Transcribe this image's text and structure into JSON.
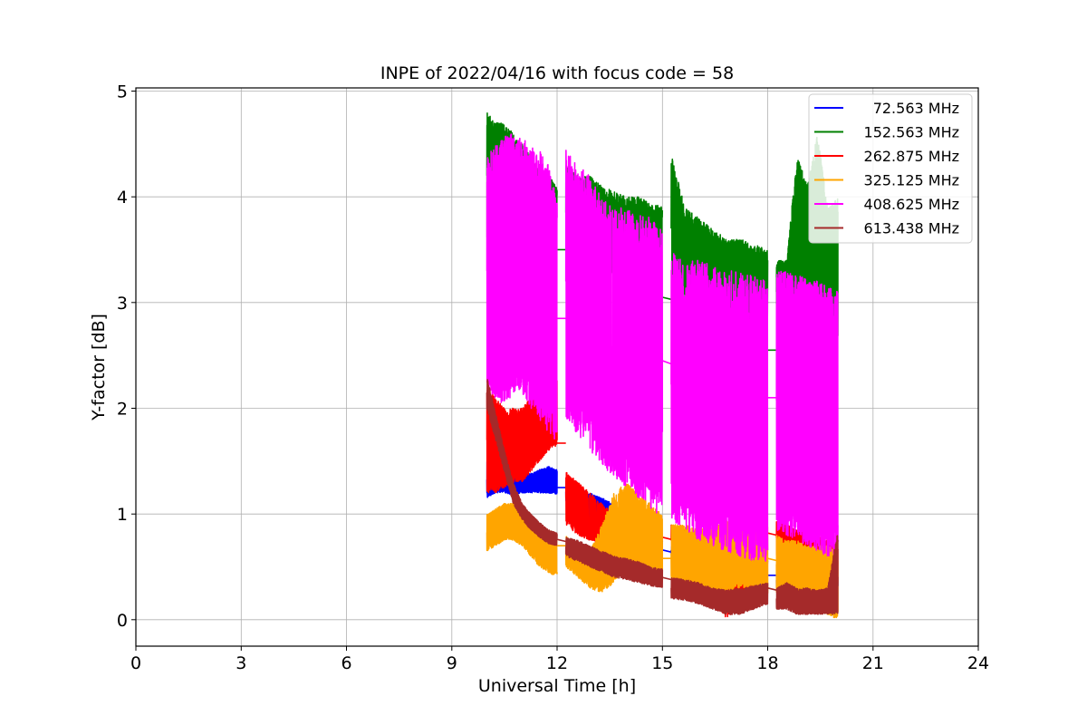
{
  "chart_data": {
    "type": "line",
    "title": "INPE of 2022/04/16 with focus code = 58",
    "xlabel": "Universal Time [h]",
    "ylabel": "Y-factor [dB]",
    "xlim": [
      0,
      24
    ],
    "ylim": [
      -0.25,
      5.03
    ],
    "xticks": [
      0,
      3,
      6,
      9,
      12,
      15,
      18,
      21,
      24
    ],
    "yticks": [
      0,
      1,
      2,
      3,
      4,
      5
    ],
    "grid": true,
    "legend_position": "top-right",
    "series": [
      {
        "name": "72.563 MHz",
        "color": "#0000ff",
        "segments": [
          {
            "start": 10.0,
            "end": 12.0,
            "low": [
              1.15,
              1.2,
              1.2,
              1.18,
              1.2,
              1.2,
              1.2,
              1.2,
              1.18
            ],
            "high": [
              1.5,
              1.45,
              1.4,
              1.35,
              1.4,
              1.38,
              1.42,
              1.45,
              1.42
            ]
          },
          {
            "start": 12.25,
            "end": 15.0,
            "low": [
              1.12,
              1.0,
              0.95,
              0.9,
              0.85,
              0.8,
              0.72,
              0.7,
              0.68
            ],
            "high": [
              1.3,
              1.25,
              1.2,
              1.15,
              1.1,
              1.0,
              0.9,
              0.85,
              0.75
            ]
          },
          {
            "start": 15.25,
            "end": 18.0,
            "low": [
              0.62,
              0.55,
              0.48,
              0.42,
              0.38,
              0.35,
              0.32,
              0.3
            ],
            "high": [
              0.7,
              0.65,
              0.6,
              0.55,
              0.5,
              0.48,
              0.45,
              0.43
            ]
          },
          {
            "start": 18.25,
            "end": 20.0,
            "low": [
              0.3,
              0.25,
              0.2,
              0.15,
              0.12,
              0.1,
              0.05
            ],
            "high": [
              0.45,
              0.4,
              0.35,
              0.3,
              0.28,
              0.25,
              0.45
            ]
          }
        ],
        "bridges": [
          [
            12.0,
            1.25,
            12.25,
            1.25
          ],
          [
            15.0,
            0.66,
            15.25,
            0.64
          ],
          [
            18.0,
            0.42,
            18.25,
            0.42
          ]
        ]
      },
      {
        "name": "152.563 MHz",
        "color": "#008000",
        "segments": [
          {
            "start": 10.0,
            "end": 12.0,
            "low": [
              3.6,
              3.55,
              3.5,
              3.5,
              3.55,
              3.5,
              3.5,
              3.5,
              3.5
            ],
            "high": [
              4.8,
              4.7,
              4.7,
              4.6,
              4.5,
              4.4,
              4.3,
              4.2,
              4.1
            ]
          },
          {
            "start": 12.25,
            "end": 15.0,
            "low": [
              3.4,
              3.4,
              3.35,
              3.3,
              3.25,
              3.2,
              3.15,
              3.1,
              3.05
            ],
            "high": [
              4.3,
              4.2,
              4.2,
              4.1,
              4.05,
              4.0,
              4.0,
              3.95,
              3.9
            ]
          },
          {
            "start": 15.25,
            "end": 18.0,
            "low": [
              3.0,
              3.0,
              2.95,
              2.9,
              2.85,
              2.85,
              2.8,
              2.8
            ],
            "high": [
              4.4,
              3.9,
              3.8,
              3.7,
              3.6,
              3.6,
              3.55,
              3.5
            ]
          },
          {
            "start": 18.25,
            "end": 20.0,
            "low": [
              2.8,
              2.8,
              2.75,
              2.7,
              2.7,
              2.7,
              2.65
            ],
            "high": [
              3.4,
              3.4,
              4.4,
              4.1,
              4.6,
              3.9,
              4.0
            ]
          }
        ],
        "bridges": [
          [
            12.0,
            3.5,
            12.25,
            3.5
          ],
          [
            15.0,
            3.05,
            15.25,
            3.03
          ],
          [
            18.0,
            2.55,
            18.25,
            2.55
          ]
        ]
      },
      {
        "name": "262.875 MHz",
        "color": "#ff0000",
        "segments": [
          {
            "start": 10.0,
            "end": 12.0,
            "low": [
              1.2,
              1.2,
              1.25,
              1.3,
              1.3,
              1.4,
              1.5,
              1.6,
              1.65
            ],
            "high": [
              2.2,
              2.1,
              2.0,
              2.0,
              2.0,
              2.1,
              2.1,
              2.2,
              2.3
            ]
          },
          {
            "start": 12.25,
            "end": 15.0,
            "low": [
              0.9,
              0.8,
              0.75,
              0.7,
              0.7,
              0.7,
              0.65,
              0.65,
              0.6
            ],
            "high": [
              1.4,
              1.3,
              1.2,
              1.1,
              1.0,
              1.0,
              0.95,
              0.9,
              0.85
            ]
          },
          {
            "start": 15.25,
            "end": 18.0,
            "low": [
              0.6,
              0.5,
              0.4,
              0.2,
              0.0,
              0.1,
              0.3,
              0.5
            ],
            "high": [
              0.9,
              0.85,
              0.8,
              0.8,
              0.8,
              0.8,
              0.85,
              0.9
            ]
          },
          {
            "start": 18.25,
            "end": 20.0,
            "low": [
              0.6,
              0.6,
              0.55,
              0.5,
              0.5,
              0.4,
              0.3
            ],
            "high": [
              0.95,
              0.9,
              0.85,
              0.85,
              0.8,
              0.75,
              0.7
            ]
          }
        ],
        "bridges": [
          [
            12.0,
            1.67,
            12.25,
            1.67
          ],
          [
            15.0,
            0.78,
            15.25,
            0.76
          ],
          [
            18.0,
            0.82,
            18.25,
            0.8
          ]
        ]
      },
      {
        "name": "325.125 MHz",
        "color": "#ffa500",
        "segments": [
          {
            "start": 10.0,
            "end": 12.0,
            "low": [
              0.65,
              0.7,
              0.75,
              0.75,
              0.7,
              0.6,
              0.5,
              0.45,
              0.4
            ],
            "high": [
              1.0,
              1.05,
              1.1,
              1.1,
              1.05,
              1.0,
              0.9,
              0.85,
              0.8
            ]
          },
          {
            "start": 12.25,
            "end": 15.0,
            "low": [
              0.5,
              0.4,
              0.3,
              0.25,
              0.35,
              0.5,
              0.45,
              0.4,
              0.35
            ],
            "high": [
              0.8,
              0.7,
              0.65,
              0.9,
              1.2,
              1.3,
              1.2,
              1.1,
              1.0
            ]
          },
          {
            "start": 15.25,
            "end": 18.0,
            "low": [
              0.35,
              0.3,
              0.25,
              0.2,
              0.25,
              0.3,
              0.3,
              0.25
            ],
            "high": [
              0.9,
              0.9,
              0.85,
              0.9,
              0.95,
              0.9,
              0.85,
              0.9
            ]
          },
          {
            "start": 18.25,
            "end": 20.0,
            "low": [
              0.25,
              0.2,
              0.2,
              0.15,
              0.1,
              0.05,
              0.0
            ],
            "high": [
              0.8,
              0.75,
              0.75,
              0.7,
              0.7,
              0.7,
              0.65
            ]
          }
        ],
        "bridges": [
          [
            12.0,
            0.7,
            12.25,
            0.7
          ],
          [
            15.0,
            0.58,
            15.25,
            0.58
          ],
          [
            18.0,
            0.58,
            18.25,
            0.56
          ]
        ]
      },
      {
        "name": "408.625 MHz",
        "color": "#ff00ff",
        "segments": [
          {
            "start": 10.0,
            "end": 12.0,
            "low": [
              2.2,
              2.05,
              2.05,
              2.1,
              2.15,
              2.0,
              1.9,
              1.75,
              1.65
            ],
            "high": [
              4.4,
              4.5,
              4.6,
              4.6,
              4.55,
              4.5,
              4.45,
              4.3,
              4.0
            ]
          },
          {
            "start": 12.25,
            "end": 15.0,
            "low": [
              1.9,
              1.75,
              1.6,
              1.45,
              1.35,
              1.25,
              1.15,
              1.05,
              0.95
            ],
            "high": [
              4.5,
              4.3,
              4.2,
              4.0,
              3.9,
              3.9,
              3.85,
              3.8,
              3.7
            ]
          },
          {
            "start": 15.25,
            "end": 18.0,
            "low": [
              0.95,
              0.85,
              0.75,
              0.7,
              0.65,
              0.6,
              0.55,
              0.55
            ],
            "high": [
              3.5,
              3.4,
              3.4,
              3.35,
              3.3,
              3.3,
              3.25,
              3.2
            ]
          },
          {
            "start": 18.25,
            "end": 20.0,
            "low": [
              0.85,
              0.8,
              0.75,
              0.7,
              0.65,
              0.6,
              0.6
            ],
            "high": [
              3.3,
              3.3,
              3.25,
              3.25,
              3.2,
              3.15,
              3.1
            ]
          }
        ],
        "bridges": [
          [
            12.0,
            2.85,
            12.25,
            2.85
          ],
          [
            15.0,
            2.45,
            15.25,
            2.42
          ],
          [
            18.0,
            2.1,
            18.25,
            2.1
          ]
        ]
      },
      {
        "name": "613.438 MHz",
        "color": "#a52a2a",
        "segments": [
          {
            "start": 10.0,
            "end": 12.0,
            "low": [
              2.0,
              1.7,
              1.4,
              1.1,
              0.95,
              0.85,
              0.78,
              0.72,
              0.7
            ],
            "high": [
              2.3,
              1.95,
              1.6,
              1.3,
              1.1,
              1.0,
              0.92,
              0.85,
              0.82
            ]
          },
          {
            "start": 12.25,
            "end": 15.0,
            "low": [
              0.6,
              0.55,
              0.5,
              0.45,
              0.4,
              0.38,
              0.35,
              0.32,
              0.3
            ],
            "high": [
              0.78,
              0.75,
              0.7,
              0.65,
              0.6,
              0.58,
              0.55,
              0.5,
              0.48
            ]
          },
          {
            "start": 15.25,
            "end": 18.0,
            "low": [
              0.2,
              0.18,
              0.15,
              0.1,
              0.05,
              0.05,
              0.1,
              0.15
            ],
            "high": [
              0.4,
              0.38,
              0.35,
              0.3,
              0.28,
              0.3,
              0.32,
              0.35
            ]
          },
          {
            "start": 18.25,
            "end": 20.0,
            "low": [
              0.1,
              0.1,
              0.05,
              0.05,
              0.05,
              0.05,
              0.05
            ],
            "high": [
              0.3,
              0.35,
              0.3,
              0.3,
              0.28,
              0.3,
              0.85
            ]
          }
        ],
        "bridges": [
          [
            12.0,
            0.76,
            12.25,
            0.74
          ],
          [
            15.0,
            0.4,
            15.25,
            0.38
          ],
          [
            18.0,
            0.3,
            18.25,
            0.28
          ]
        ]
      }
    ]
  }
}
